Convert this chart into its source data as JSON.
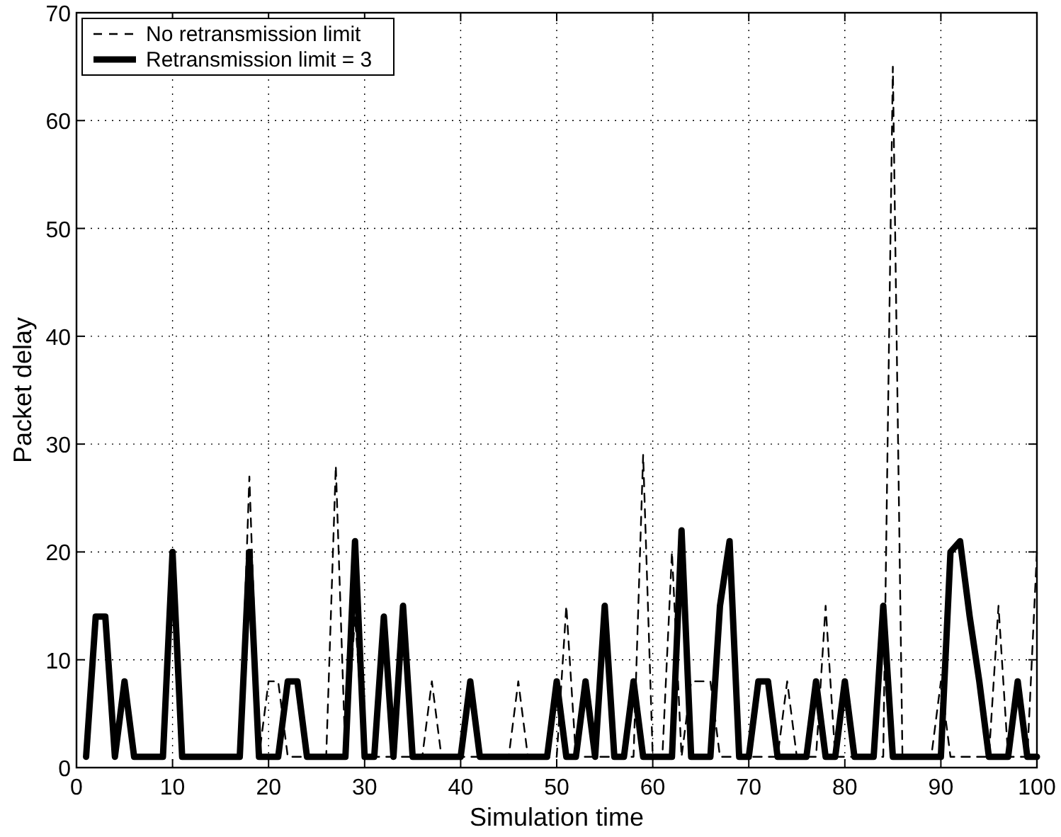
{
  "chart_data": {
    "type": "line",
    "xlabel": "Simulation time",
    "ylabel": "Packet delay",
    "x": [
      1,
      2,
      3,
      4,
      5,
      6,
      7,
      8,
      9,
      10,
      11,
      12,
      13,
      14,
      15,
      16,
      17,
      18,
      19,
      20,
      21,
      22,
      23,
      24,
      25,
      26,
      27,
      28,
      29,
      30,
      31,
      32,
      33,
      34,
      35,
      36,
      37,
      38,
      39,
      40,
      41,
      42,
      43,
      44,
      45,
      46,
      47,
      48,
      49,
      50,
      51,
      52,
      53,
      54,
      55,
      56,
      57,
      58,
      59,
      60,
      61,
      62,
      63,
      64,
      65,
      66,
      67,
      68,
      69,
      70,
      71,
      72,
      73,
      74,
      75,
      76,
      77,
      78,
      79,
      80,
      81,
      82,
      83,
      84,
      85,
      86,
      87,
      88,
      89,
      90,
      91,
      92,
      93,
      94,
      95,
      96,
      97,
      98,
      99,
      100
    ],
    "series": [
      {
        "name": "No retransmission limit",
        "color": "#000000",
        "line_style": "dashed",
        "values": [
          1,
          14,
          14,
          1,
          8,
          1,
          1,
          1,
          1,
          20,
          1,
          1,
          1,
          1,
          1,
          1,
          1,
          27,
          1,
          8,
          8,
          1,
          1,
          1,
          1,
          1,
          28,
          1,
          14,
          1,
          1,
          1,
          1,
          1,
          1,
          1,
          8,
          1,
          1,
          1,
          1,
          1,
          1,
          1,
          1,
          8,
          1,
          1,
          1,
          1,
          15,
          1,
          1,
          1,
          1,
          1,
          1,
          1,
          29,
          1,
          1,
          20,
          1,
          8,
          8,
          8,
          1,
          1,
          1,
          1,
          1,
          1,
          1,
          8,
          1,
          1,
          1,
          15,
          1,
          1,
          1,
          1,
          1,
          1,
          65,
          1,
          1,
          1,
          1,
          8,
          1,
          1,
          1,
          1,
          1,
          15,
          1,
          1,
          1,
          20
        ]
      },
      {
        "name": "Retransmission limit = 3",
        "color": "#000000",
        "line_style": "solid",
        "values": [
          1,
          14,
          14,
          1,
          8,
          1,
          1,
          1,
          1,
          20,
          1,
          1,
          1,
          1,
          1,
          1,
          1,
          20,
          1,
          1,
          1,
          8,
          8,
          1,
          1,
          1,
          1,
          1,
          21,
          1,
          1,
          14,
          1,
          15,
          1,
          1,
          1,
          1,
          1,
          1,
          8,
          1,
          1,
          1,
          1,
          1,
          1,
          1,
          1,
          8,
          1,
          1,
          8,
          1,
          15,
          1,
          1,
          8,
          1,
          1,
          1,
          1,
          22,
          1,
          1,
          1,
          15,
          21,
          1,
          1,
          8,
          8,
          1,
          1,
          1,
          1,
          8,
          1,
          1,
          8,
          1,
          1,
          1,
          15,
          1,
          1,
          1,
          1,
          1,
          1,
          20,
          21,
          14,
          8,
          1,
          1,
          1,
          8,
          1,
          1
        ]
      }
    ],
    "xlim": [
      0,
      100
    ],
    "xticks": [
      0,
      10,
      20,
      30,
      40,
      50,
      60,
      70,
      80,
      90,
      100
    ],
    "ylim": [
      0,
      70
    ],
    "yticks": [
      0,
      10,
      20,
      30,
      40,
      50,
      60,
      70
    ],
    "grid": true,
    "legend": "top left"
  }
}
